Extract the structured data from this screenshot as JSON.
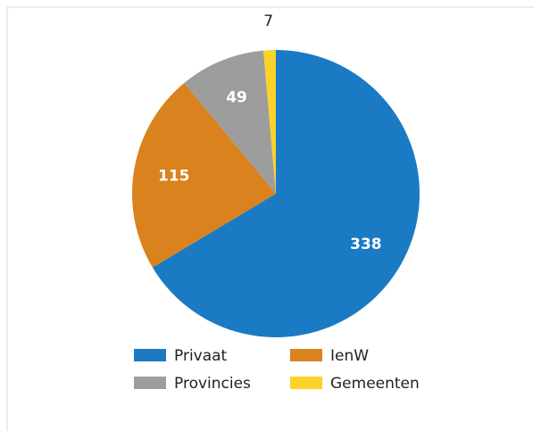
{
  "chart_data": {
    "type": "pie",
    "categories": [
      "Privaat",
      "IenW",
      "Provincies",
      "Gemeenten"
    ],
    "values": [
      338,
      115,
      49,
      7
    ],
    "colors": [
      "#1a7ac4",
      "#d9821e",
      "#9d9d9d",
      "#fcd22a"
    ]
  }
}
